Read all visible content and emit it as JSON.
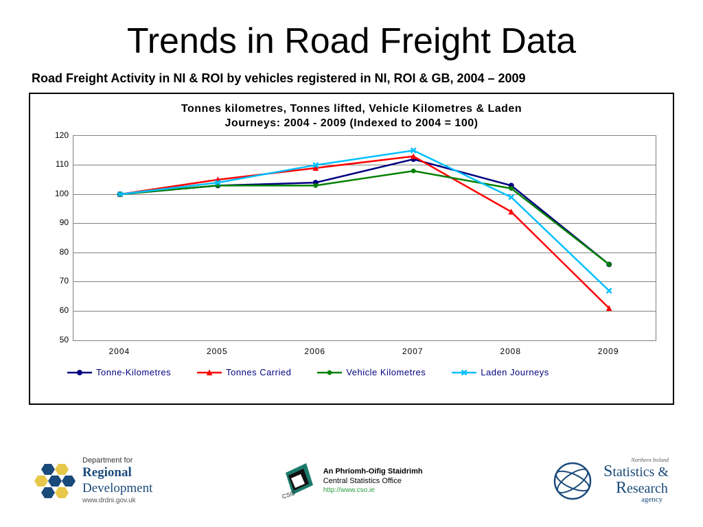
{
  "title": "Trends in Road Freight Data",
  "subtitle": "Road Freight Activity in NI & ROI by vehicles registered in NI, ROI & GB, 2004 – 2009",
  "chart": {
    "type": "line",
    "title_line1": "Tonnes kilometres, Tonnes lifted, Vehicle Kilometres & Laden",
    "title_line2": "Journeys: 2004 - 2009 (Indexed to 2004 = 100)",
    "x_categories": [
      "2004",
      "2005",
      "2006",
      "2007",
      "2008",
      "2009"
    ],
    "ylim": [
      50,
      120
    ],
    "ytick_step": 10,
    "yticks": [
      50,
      60,
      70,
      80,
      90,
      100,
      110,
      120
    ],
    "grid_color": "#808080",
    "background_color": "#ffffff",
    "border_color": "#808080",
    "tick_fontsize": 12,
    "title_fontsize": 16,
    "line_width": 2.5,
    "marker_size": 7,
    "series": [
      {
        "name": "Tonne-Kilometres",
        "color": "#000080",
        "marker": "circle",
        "values": [
          100,
          103,
          104,
          112,
          103,
          76
        ]
      },
      {
        "name": "Tonnes Carried",
        "color": "#ff0000",
        "marker": "triangle",
        "values": [
          100,
          105,
          109,
          113,
          94,
          61
        ]
      },
      {
        "name": "Vehicle Kilometres",
        "color": "#008000",
        "marker": "star",
        "values": [
          100,
          103,
          103,
          108,
          102,
          76
        ]
      },
      {
        "name": "Laden Journeys",
        "color": "#00bfff",
        "marker": "x",
        "values": [
          100,
          104,
          110,
          115,
          99,
          67
        ]
      }
    ]
  },
  "footer": {
    "drd": {
      "line1": "Department for",
      "line2": "Regional",
      "line3": "Development",
      "url": "www.drdni.gov.uk"
    },
    "cso": {
      "line1": "An Phríomh-Oifig Staidrimh",
      "line2": "Central Statistics Office",
      "url": "http://www.cso.ie"
    },
    "nisra": {
      "top": "Northern Ireland",
      "line1": "Statistics &",
      "line2": "Research",
      "agency_word": "agency"
    }
  }
}
